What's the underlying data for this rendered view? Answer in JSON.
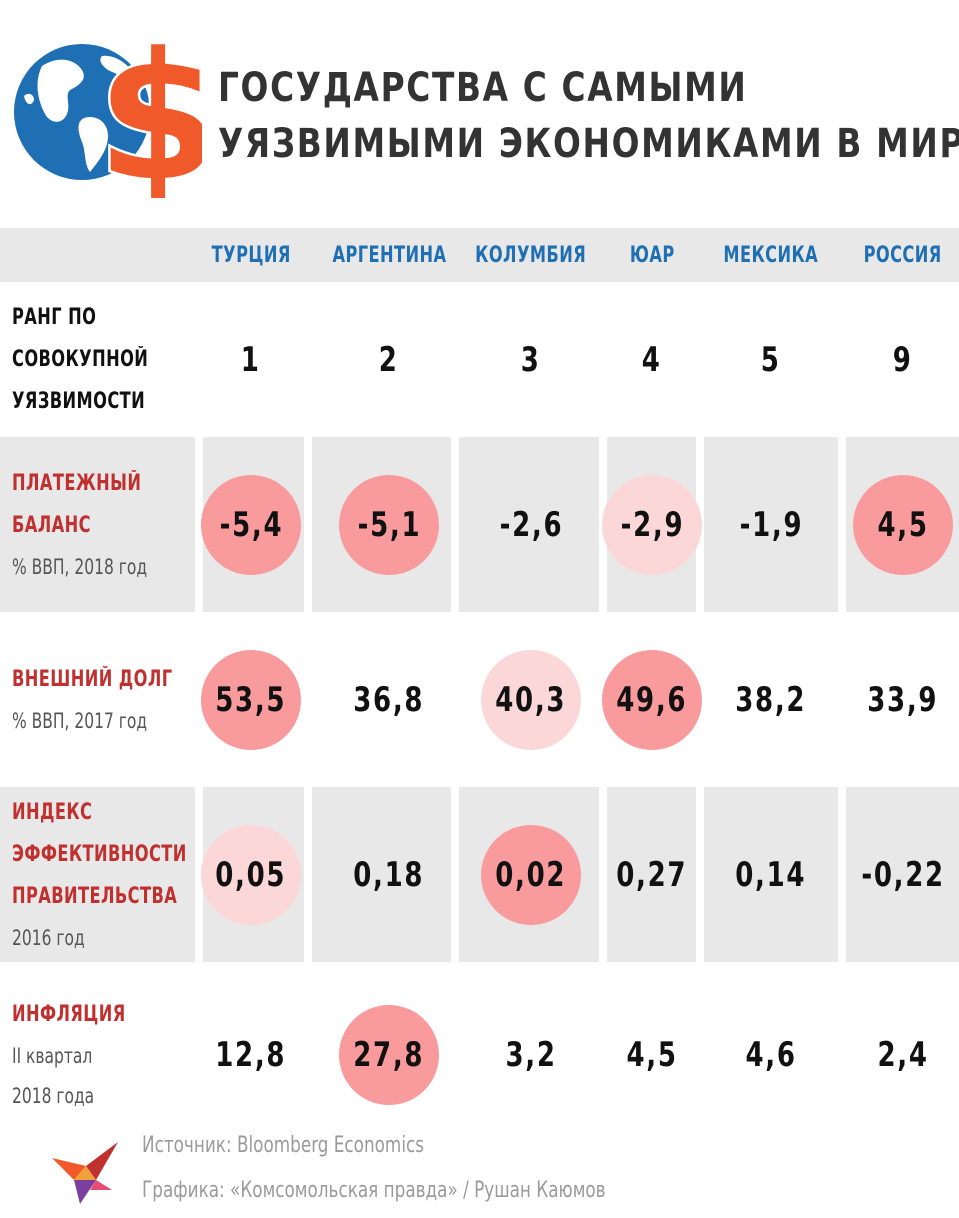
{
  "header": {
    "title_line1": "ГОСУДАРСТВА С САМЫМИ",
    "title_line2": "УЯЗВИМЫМИ ЭКОНОМИКАМИ В МИРЕ",
    "logo_symbol": "$"
  },
  "chart_data": {
    "type": "table",
    "columns": [
      "ТУРЦИЯ",
      "АРГЕНТИНА",
      "КОЛУМБИЯ",
      "ЮАР",
      "МЕКСИКА",
      "РОССИЯ"
    ],
    "rows": [
      {
        "label_lines": [
          "РАНГ ПО",
          "СОВОКУПНОЙ",
          "УЯЗВИМОСТИ"
        ],
        "sub_lines": [],
        "label_color": "dark",
        "values": [
          "1",
          "2",
          "3",
          "4",
          "5",
          "9"
        ],
        "highlights": [
          "none",
          "none",
          "none",
          "none",
          "none",
          "none"
        ]
      },
      {
        "label_lines": [
          "ПЛАТЕЖНЫЙ",
          "БАЛАНС"
        ],
        "sub_lines": [
          "% ВВП, 2018 год"
        ],
        "label_color": "red",
        "values": [
          "-5,4",
          "-5,1",
          "-2,6",
          "-2,9",
          "-1,9",
          "4,5"
        ],
        "highlights": [
          "strong",
          "strong",
          "none",
          "light",
          "none",
          "strong"
        ]
      },
      {
        "label_lines": [
          "ВНЕШНИЙ ДОЛГ"
        ],
        "sub_lines": [
          "% ВВП, 2017 год"
        ],
        "label_color": "red",
        "values": [
          "53,5",
          "36,8",
          "40,3",
          "49,6",
          "38,2",
          "33,9"
        ],
        "highlights": [
          "strong",
          "none",
          "light",
          "strong",
          "none",
          "none"
        ]
      },
      {
        "label_lines": [
          "ИНДЕКС",
          "ЭФФЕКТИВНОСТИ",
          "ПРАВИТЕЛЬСТВА"
        ],
        "sub_lines": [
          "2016 год"
        ],
        "label_color": "red",
        "values": [
          "0,05",
          "0,18",
          "0,02",
          "0,27",
          "0,14",
          "-0,22"
        ],
        "highlights": [
          "light",
          "none",
          "strong",
          "none",
          "none",
          "none"
        ]
      },
      {
        "label_lines": [
          "ИНФЛЯЦИЯ"
        ],
        "sub_lines": [
          "II квартал",
          "2018 года"
        ],
        "label_color": "red",
        "values": [
          "12,8",
          "27,8",
          "3,2",
          "4,5",
          "4,6",
          "2,4"
        ],
        "highlights": [
          "none",
          "strong",
          "none",
          "none",
          "none",
          "none"
        ]
      }
    ],
    "colors": {
      "strong_highlight": "#f99a9c",
      "light_highlight": "#fbd7d7",
      "column_header": "#1f6fb4",
      "row_label_red": "#c0302f",
      "band_gray": "#e8e8e8"
    }
  },
  "footer": {
    "source_text": "Источник: Bloomberg Economics",
    "credit_text": "Графика: «Комсомольская правда» / Рушан Каюмов"
  },
  "icons": [
    "globe-icon",
    "dollar-sign-icon",
    "bird-logo-icon"
  ]
}
